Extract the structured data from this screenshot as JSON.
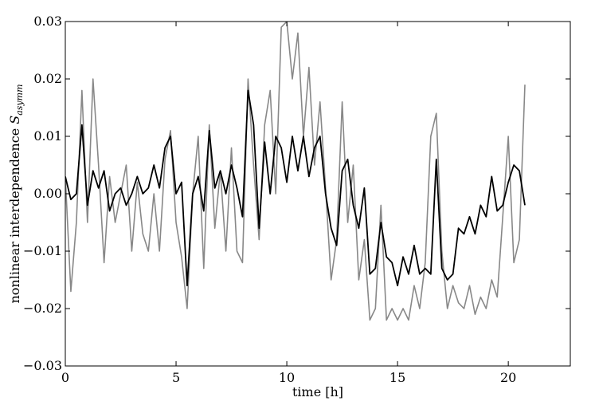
{
  "chart_data": {
    "type": "line",
    "x_label": "time [h]",
    "y_label": "nonlinear interdependence",
    "y_label_symbol": "S",
    "y_label_subscript": "asymm",
    "xlim": [
      0,
      22.8
    ],
    "ylim": [
      -0.03,
      0.03
    ],
    "xticks": [
      0,
      5,
      10,
      15,
      20
    ],
    "yticks": [
      {
        "value": -0.03,
        "label": "−0.03"
      },
      {
        "value": -0.02,
        "label": "−0.02"
      },
      {
        "value": -0.01,
        "label": "−0.01"
      },
      {
        "value": 0,
        "label": "0.00"
      },
      {
        "value": 0.01,
        "label": "0.01"
      },
      {
        "value": 0.02,
        "label": "0.02"
      },
      {
        "value": 0.03,
        "label": "0.03"
      }
    ],
    "x": [
      0,
      0.25,
      0.5,
      0.75,
      1,
      1.25,
      1.5,
      1.75,
      2,
      2.25,
      2.5,
      2.75,
      3,
      3.25,
      3.5,
      3.75,
      4,
      4.25,
      4.5,
      4.75,
      5,
      5.25,
      5.5,
      5.75,
      6,
      6.25,
      6.5,
      6.75,
      7,
      7.25,
      7.5,
      7.75,
      8,
      8.25,
      8.5,
      8.75,
      9,
      9.25,
      9.5,
      9.75,
      10,
      10.25,
      10.5,
      10.75,
      11,
      11.25,
      11.5,
      11.75,
      12,
      12.25,
      12.5,
      12.75,
      13,
      13.25,
      13.5,
      13.75,
      14,
      14.25,
      14.5,
      14.75,
      15,
      15.25,
      15.5,
      15.75,
      16,
      16.25,
      16.5,
      16.75,
      17,
      17.25,
      17.5,
      17.75,
      18,
      18.25,
      18.5,
      18.75,
      19,
      19.25,
      19.5,
      19.75,
      20,
      20.25,
      20.5,
      20.75
    ],
    "series": [
      {
        "color": "#888888",
        "values": [
          0.003,
          -0.017,
          -0.005,
          0.018,
          -0.005,
          0.02,
          0.005,
          -0.012,
          0.003,
          -0.005,
          0,
          0.005,
          -0.01,
          0.002,
          -0.007,
          -0.01,
          0,
          -0.01,
          0.006,
          0.011,
          -0.005,
          -0.011,
          -0.02,
          0,
          0.01,
          -0.013,
          0.012,
          -0.006,
          0.004,
          -0.01,
          0.008,
          -0.01,
          -0.012,
          0.02,
          0.005,
          -0.008,
          0.012,
          0.018,
          0,
          0.029,
          0.03,
          0.02,
          0.028,
          0.01,
          0.022,
          0.005,
          0.016,
          0.001,
          -0.015,
          -0.008,
          0.016,
          -0.005,
          0.005,
          -0.015,
          -0.008,
          -0.022,
          -0.02,
          -0.002,
          -0.022,
          -0.02,
          -0.022,
          -0.02,
          -0.022,
          -0.016,
          -0.02,
          -0.012,
          0.01,
          0.014,
          -0.01,
          -0.02,
          -0.016,
          -0.019,
          -0.02,
          -0.016,
          -0.021,
          -0.018,
          -0.02,
          -0.015,
          -0.018,
          -0.004,
          0.01,
          -0.012,
          -0.008,
          0.019
        ]
      },
      {
        "color": "#000000",
        "values": [
          0.003,
          -0.001,
          0,
          0.012,
          -0.002,
          0.004,
          0.001,
          0.004,
          -0.003,
          0,
          0.001,
          -0.002,
          0,
          0.003,
          0,
          0.001,
          0.005,
          0.001,
          0.008,
          0.01,
          0,
          0.002,
          -0.016,
          0,
          0.003,
          -0.003,
          0.011,
          0.001,
          0.004,
          0,
          0.005,
          0.001,
          -0.004,
          0.018,
          0.012,
          -0.006,
          0.009,
          0,
          0.01,
          0.008,
          0.002,
          0.01,
          0.004,
          0.01,
          0.003,
          0.008,
          0.01,
          0,
          -0.006,
          -0.009,
          0.004,
          0.006,
          -0.002,
          -0.006,
          0.001,
          -0.014,
          -0.013,
          -0.005,
          -0.011,
          -0.012,
          -0.016,
          -0.011,
          -0.014,
          -0.009,
          -0.014,
          -0.013,
          -0.014,
          0.006,
          -0.013,
          -0.015,
          -0.014,
          -0.006,
          -0.007,
          -0.004,
          -0.007,
          -0.002,
          -0.004,
          0.003,
          -0.003,
          -0.002,
          0.002,
          0.005,
          0.004,
          -0.002
        ]
      }
    ]
  }
}
